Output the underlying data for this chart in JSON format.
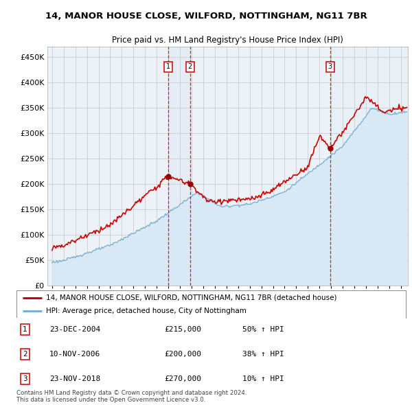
{
  "title1": "14, MANOR HOUSE CLOSE, WILFORD, NOTTINGHAM, NG11 7BR",
  "title2": "Price paid vs. HM Land Registry's House Price Index (HPI)",
  "ylabel_ticks": [
    "£0",
    "£50K",
    "£100K",
    "£150K",
    "£200K",
    "£250K",
    "£300K",
    "£350K",
    "£400K",
    "£450K"
  ],
  "ytick_values": [
    0,
    50000,
    100000,
    150000,
    200000,
    250000,
    300000,
    350000,
    400000,
    450000
  ],
  "xmin": 1994.6,
  "xmax": 2025.6,
  "ymin": 0,
  "ymax": 470000,
  "transactions": [
    {
      "num": 1,
      "date": "23-DEC-2004",
      "x": 2005.0,
      "price": 215000,
      "hpi_pct": "50% ↑ HPI"
    },
    {
      "num": 2,
      "date": "10-NOV-2006",
      "x": 2006.87,
      "price": 200000,
      "hpi_pct": "38% ↑ HPI"
    },
    {
      "num": 3,
      "date": "23-NOV-2018",
      "x": 2018.9,
      "price": 270000,
      "hpi_pct": "10% ↑ HPI"
    }
  ],
  "legend_line1": "14, MANOR HOUSE CLOSE, WILFORD, NOTTINGHAM, NG11 7BR (detached house)",
  "legend_line2": "HPI: Average price, detached house, City of Nottingham",
  "footnote": "Contains HM Land Registry data © Crown copyright and database right 2024.\nThis data is licensed under the Open Government Licence v3.0.",
  "line_color_red": "#cc0000",
  "line_color_blue": "#7ab0d4",
  "fill_color_blue": "#d8e8f4",
  "fill_color_shade": "#dce9f5",
  "grid_color": "#cccccc",
  "vline_color": "#cc0000",
  "box_color": "#cc0000",
  "background_chart": "#edf2f8",
  "dot_color": "#990000"
}
